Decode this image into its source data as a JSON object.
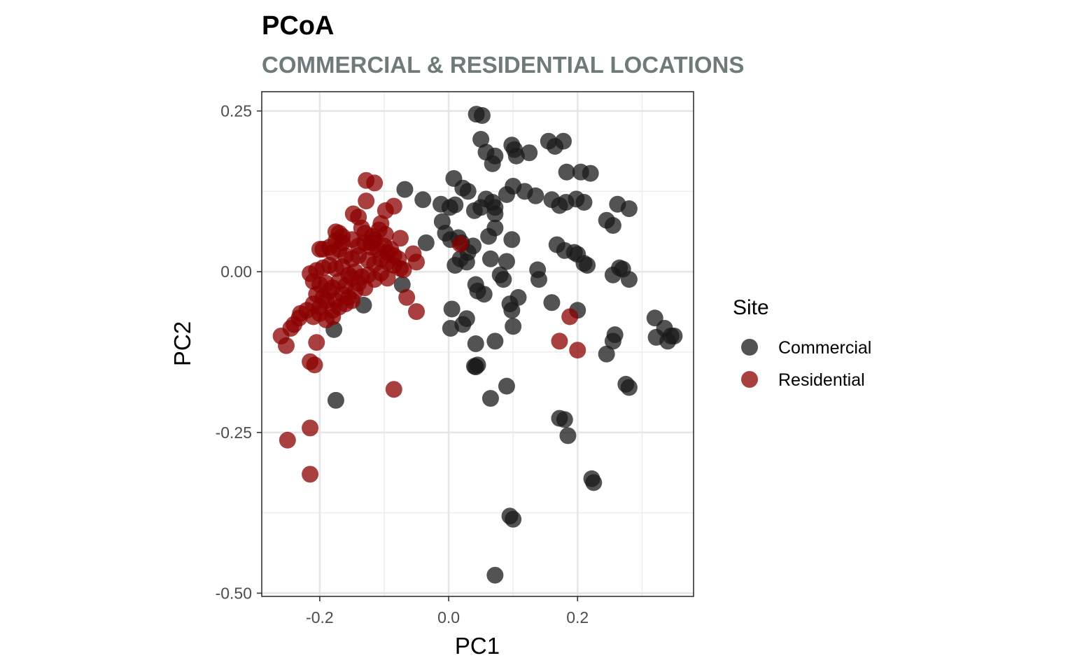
{
  "chart_data": {
    "type": "scatter",
    "title": "PCoA",
    "subtitle": "COMMERCIAL & RESIDENTIAL LOCATIONS",
    "xlabel": "PC1",
    "ylabel": "PC2",
    "xlim": [
      -0.29,
      0.38
    ],
    "ylim": [
      -0.505,
      0.28
    ],
    "x_ticks": [
      -0.2,
      0.0,
      0.2
    ],
    "x_tick_labels": [
      "-0.2",
      "0.0",
      "0.2"
    ],
    "y_ticks": [
      0.25,
      0.0,
      -0.25,
      -0.5
    ],
    "y_tick_labels": [
      "0.25",
      "0.00",
      "-0.25",
      "-0.50"
    ],
    "grid": true,
    "legend": {
      "title": "Site",
      "position": "right",
      "entries": [
        "Commercial",
        "Residential"
      ]
    },
    "colors": {
      "Commercial": "#1a1a1a",
      "Residential": "#8b0000",
      "subtitle": "#6e7b7a"
    },
    "series": [
      {
        "name": "Commercial",
        "x": [
          0.043,
          0.052,
          0.05,
          0.058,
          0.068,
          0.072,
          0.098,
          0.102,
          0.105,
          0.125,
          0.155,
          0.165,
          0.178,
          0.183,
          0.205,
          0.22,
          -0.068,
          -0.04,
          0.008,
          0.022,
          0.03,
          0.01,
          -0.012,
          0.002,
          0.04,
          0.05,
          0.058,
          0.068,
          0.072,
          0.072,
          0.09,
          0.1,
          0.118,
          0.135,
          0.16,
          0.172,
          0.182,
          0.198,
          0.21,
          0.262,
          0.28,
          0.255,
          -0.01,
          -0.005,
          0.003,
          0.015,
          0.02,
          0.03,
          0.038,
          0.062,
          0.072,
          0.098,
          0.168,
          0.18,
          0.195,
          0.2,
          0.21,
          0.245,
          0.018,
          0.01,
          0.028,
          0.065,
          0.09,
          0.138,
          0.215,
          0.265,
          0.27,
          0.255,
          0.28,
          -0.035,
          -0.072,
          0.042,
          0.045,
          0.055,
          0.08,
          0.085,
          0.095,
          0.108,
          0.14,
          0.16,
          0.2,
          0.32,
          0.335,
          0.322,
          0.345,
          0.35,
          0.34,
          0.258,
          0.255,
          0.245,
          0.005,
          0.003,
          0.022,
          0.028,
          0.042,
          0.045,
          0.1,
          0.098,
          0.072,
          0.04,
          0.042,
          0.09,
          0.065,
          0.172,
          0.18,
          0.185,
          0.275,
          0.28,
          0.222,
          0.225,
          0.095,
          0.1,
          0.072,
          -0.175,
          -0.178,
          -0.132
        ],
        "y": [
          0.245,
          0.243,
          0.206,
          0.186,
          0.168,
          0.18,
          0.197,
          0.19,
          0.18,
          0.185,
          0.203,
          0.195,
          0.203,
          0.155,
          0.155,
          0.153,
          0.128,
          0.112,
          0.145,
          0.13,
          0.125,
          0.104,
          0.105,
          0.1,
          0.095,
          0.1,
          0.113,
          0.108,
          0.1,
          0.09,
          0.12,
          0.133,
          0.125,
          0.118,
          0.112,
          0.103,
          0.108,
          0.113,
          0.108,
          0.105,
          0.098,
          0.072,
          0.078,
          0.06,
          0.05,
          0.053,
          0.045,
          0.03,
          0.04,
          0.055,
          0.068,
          0.05,
          0.042,
          0.033,
          0.03,
          0.027,
          0.013,
          0.08,
          0.02,
          0.01,
          0.015,
          0.02,
          0.016,
          0.003,
          0.01,
          0.006,
          0.004,
          -0.005,
          -0.012,
          0.045,
          -0.02,
          -0.02,
          -0.03,
          -0.035,
          -0.005,
          -0.012,
          -0.05,
          -0.04,
          -0.012,
          -0.048,
          -0.06,
          -0.072,
          -0.088,
          -0.102,
          -0.1,
          -0.1,
          -0.108,
          -0.098,
          -0.108,
          -0.128,
          -0.058,
          -0.088,
          -0.082,
          -0.073,
          -0.112,
          -0.145,
          -0.085,
          -0.06,
          -0.108,
          -0.147,
          -0.148,
          -0.178,
          -0.197,
          -0.228,
          -0.23,
          -0.255,
          -0.175,
          -0.18,
          -0.322,
          -0.328,
          -0.38,
          -0.385,
          -0.472,
          -0.2,
          -0.09,
          -0.052
        ]
      },
      {
        "name": "Residential",
        "x": [
          -0.128,
          -0.115,
          -0.098,
          -0.085,
          -0.128,
          -0.148,
          -0.14,
          -0.135,
          -0.13,
          -0.118,
          -0.108,
          -0.098,
          -0.105,
          -0.115,
          -0.12,
          -0.1,
          -0.09,
          -0.075,
          -0.165,
          -0.17,
          -0.175,
          -0.165,
          -0.15,
          -0.14,
          -0.13,
          -0.12,
          -0.11,
          -0.095,
          -0.085,
          -0.078,
          -0.07,
          -0.195,
          -0.185,
          -0.18,
          -0.17,
          -0.16,
          -0.15,
          -0.14,
          -0.125,
          -0.115,
          -0.105,
          -0.095,
          -0.085,
          -0.075,
          -0.055,
          -0.05,
          -0.215,
          -0.205,
          -0.195,
          -0.185,
          -0.175,
          -0.165,
          -0.155,
          -0.145,
          -0.135,
          -0.125,
          -0.115,
          -0.105,
          -0.095,
          -0.21,
          -0.2,
          -0.19,
          -0.18,
          -0.17,
          -0.16,
          -0.15,
          -0.14,
          -0.13,
          -0.205,
          -0.195,
          -0.185,
          -0.175,
          -0.165,
          -0.155,
          -0.145,
          -0.21,
          -0.2,
          -0.19,
          -0.18,
          -0.17,
          -0.16,
          -0.15,
          -0.23,
          -0.22,
          -0.21,
          -0.2,
          -0.19,
          -0.18,
          -0.24,
          -0.232,
          -0.245,
          -0.26,
          -0.252,
          -0.205,
          -0.215,
          -0.208,
          -0.085,
          -0.215,
          -0.25,
          -0.215,
          -0.065,
          -0.05,
          0.018,
          0.188,
          0.172,
          0.2,
          -0.2,
          -0.175
        ],
        "y": [
          0.142,
          0.138,
          0.095,
          0.102,
          0.11,
          0.09,
          0.085,
          0.068,
          0.06,
          0.055,
          0.065,
          0.058,
          0.075,
          0.05,
          0.045,
          0.04,
          0.035,
          0.052,
          0.055,
          0.06,
          0.048,
          0.045,
          0.05,
          0.04,
          0.045,
          0.038,
          0.035,
          0.03,
          0.025,
          0.02,
          0.003,
          0.035,
          0.038,
          0.03,
          0.035,
          0.025,
          0.02,
          0.025,
          0.018,
          0.012,
          0.02,
          0.015,
          0.01,
          0.005,
          0.028,
          0.015,
          -0.003,
          0.002,
          0.006,
          0.01,
          0.005,
          0.008,
          -0.005,
          0.0,
          -0.008,
          -0.005,
          -0.012,
          -0.002,
          -0.01,
          -0.015,
          -0.02,
          -0.018,
          -0.025,
          -0.015,
          -0.022,
          -0.01,
          -0.018,
          -0.025,
          -0.035,
          -0.04,
          -0.03,
          -0.045,
          -0.035,
          -0.04,
          -0.03,
          -0.05,
          -0.055,
          -0.045,
          -0.06,
          -0.055,
          -0.05,
          -0.045,
          -0.065,
          -0.06,
          -0.07,
          -0.065,
          -0.075,
          -0.07,
          -0.082,
          -0.072,
          -0.088,
          -0.1,
          -0.115,
          -0.11,
          -0.14,
          -0.145,
          -0.183,
          -0.243,
          -0.262,
          -0.315,
          -0.04,
          -0.062,
          0.043,
          -0.07,
          -0.108,
          -0.122,
          0.035,
          0.062
        ]
      }
    ]
  }
}
